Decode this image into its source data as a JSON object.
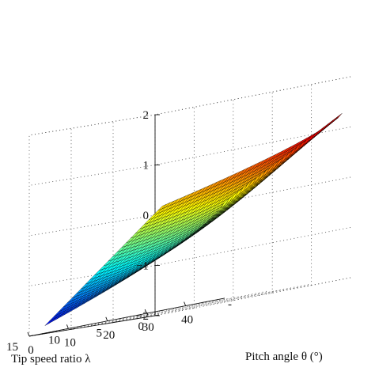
{
  "chart_data": {
    "type": "surface3d",
    "title": "",
    "xlabel": "Pitch angle θ (°)",
    "ylabel": "Tip speed ratio λ",
    "zlabel": "",
    "xlim": [
      -10,
      40
    ],
    "ylim": [
      0,
      15
    ],
    "zlim": [
      -2,
      2
    ],
    "x_ticks": [
      "0",
      "10",
      "20",
      "30",
      "40"
    ],
    "x_overflow_tick": "-",
    "y_ticks": [
      "0",
      "5",
      "10",
      "15"
    ],
    "z_ticks": [
      "−2",
      "−1",
      "0",
      "1",
      "2"
    ],
    "grid": true,
    "colormap": "jet",
    "surface": {
      "x_range": [
        -10,
        36
      ],
      "y_range": [
        1,
        15
      ],
      "corner_values": {
        "theta_-10_lambda_1": 1.3,
        "theta_-10_lambda_15": -0.08,
        "theta_36_lambda_1": 0.15,
        "theta_36_lambda_15": -1.85
      },
      "trough_value": -1.88,
      "description_of_shape": "rising toward low pitch and low tip speed ratio, falling toward high pitch and high tip speed ratio"
    },
    "colors": {
      "axis": "#111111",
      "grid": "#555555",
      "mesh": "#000000"
    }
  }
}
